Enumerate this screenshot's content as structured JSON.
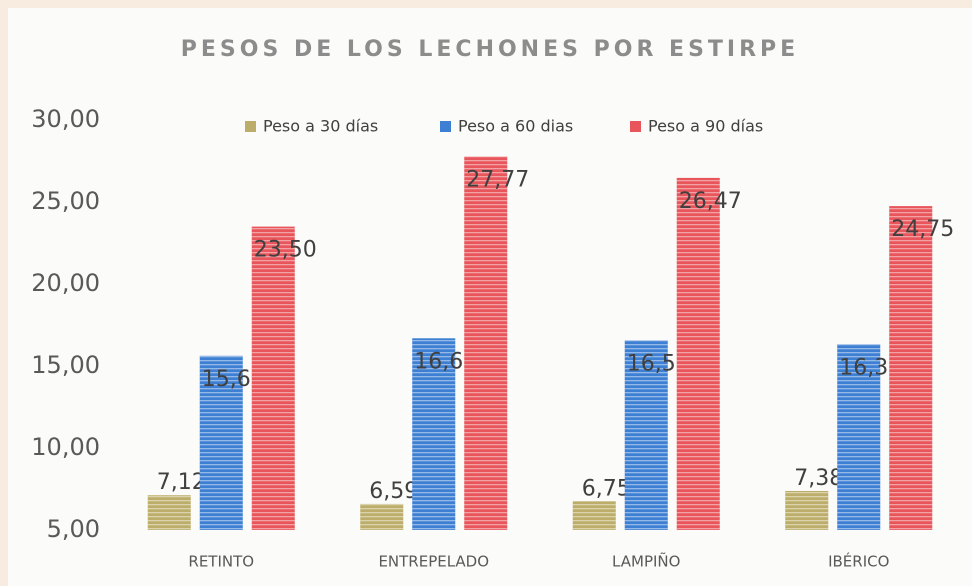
{
  "chart_data": {
    "type": "bar",
    "title": "PESOS DE LOS LECHONES POR ESTIRPE",
    "categories": [
      "RETINTO",
      "ENTREPELADO",
      "LAMPIÑO",
      "IBÉRICO"
    ],
    "series": [
      {
        "name": "Peso a 30 días",
        "color": "#bcae6a",
        "values": [
          7.12,
          6.59,
          6.75,
          7.38
        ],
        "value_labels": [
          "7,12",
          "6,59",
          "6,75",
          "7,38"
        ]
      },
      {
        "name": "Peso a 60 dias",
        "color": "#3d7fd3",
        "values": [
          15.62,
          16.69,
          16.56,
          16.32
        ],
        "value_labels": [
          "15,62",
          "16,69",
          "16,56",
          "16,32"
        ]
      },
      {
        "name": "Peso a 90 días",
        "color": "#e8555a",
        "values": [
          23.5,
          27.77,
          26.47,
          24.75
        ],
        "value_labels": [
          "23,50",
          "27,77",
          "26,47",
          "24,75"
        ]
      }
    ],
    "ylim": [
      5,
      30
    ],
    "yticks": [
      {
        "value": 5,
        "label": "5,00"
      },
      {
        "value": 10,
        "label": "10,00"
      },
      {
        "value": 15,
        "label": "15,00"
      },
      {
        "value": 20,
        "label": "20,00"
      },
      {
        "value": 25,
        "label": "25,00"
      },
      {
        "value": 30,
        "label": "30,00"
      }
    ],
    "legend": "top"
  }
}
